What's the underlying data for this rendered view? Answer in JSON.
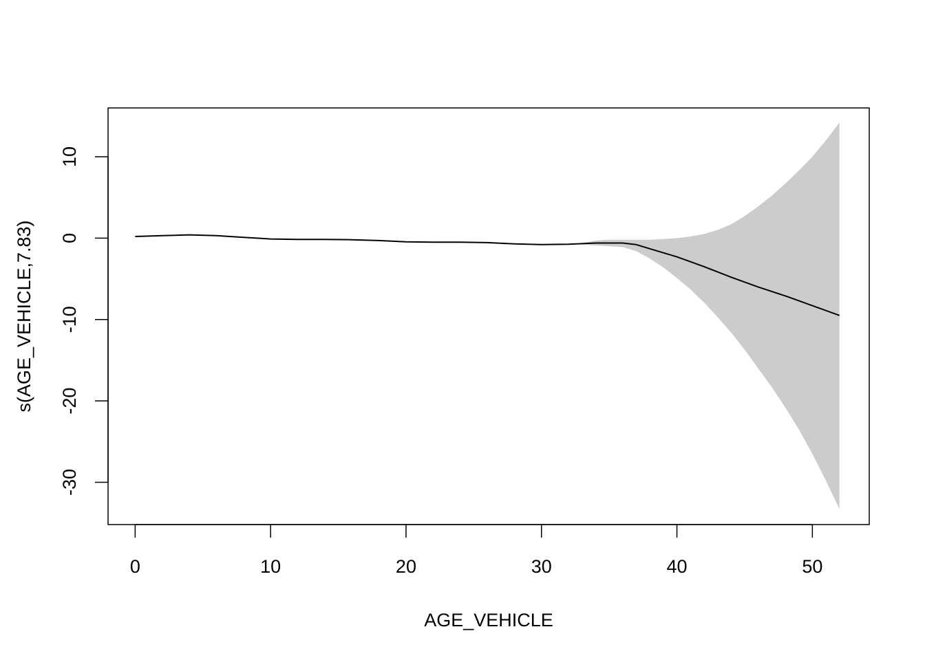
{
  "chart_data": {
    "type": "line",
    "title": "",
    "xlabel": "AGE_VEHICLE",
    "ylabel": "s(AGE_VEHICLE,7.83)",
    "xlim": [
      -2,
      54.2
    ],
    "ylim": [
      -35.2,
      16
    ],
    "x_ticks": [
      0,
      10,
      20,
      30,
      40,
      50
    ],
    "y_ticks": [
      -30,
      -20,
      -10,
      0,
      10
    ],
    "grid": false,
    "legend": "none",
    "series": [
      {
        "role": "estimate",
        "color": "#000000",
        "points": [
          [
            0,
            0.2
          ],
          [
            2,
            0.3
          ],
          [
            4,
            0.4
          ],
          [
            6,
            0.3
          ],
          [
            8,
            0.1
          ],
          [
            10,
            -0.1
          ],
          [
            12,
            -0.15
          ],
          [
            14,
            -0.15
          ],
          [
            16,
            -0.2
          ],
          [
            18,
            -0.3
          ],
          [
            20,
            -0.45
          ],
          [
            22,
            -0.5
          ],
          [
            24,
            -0.5
          ],
          [
            26,
            -0.55
          ],
          [
            28,
            -0.7
          ],
          [
            30,
            -0.8
          ],
          [
            32,
            -0.75
          ],
          [
            34,
            -0.6
          ],
          [
            36,
            -0.6
          ],
          [
            37,
            -0.8
          ],
          [
            38,
            -1.3
          ],
          [
            40,
            -2.3
          ],
          [
            42,
            -3.5
          ],
          [
            44,
            -4.8
          ],
          [
            46,
            -6.0
          ],
          [
            48,
            -7.1
          ],
          [
            50,
            -8.3
          ],
          [
            52,
            -9.5
          ]
        ]
      },
      {
        "role": "confidence-band",
        "color": "#cccccc",
        "x": [
          33,
          34,
          35,
          36,
          37,
          38,
          39,
          40,
          41,
          42,
          43,
          44,
          45,
          46,
          47,
          48,
          49,
          50,
          51,
          52
        ],
        "upper": [
          -0.6,
          -0.3,
          -0.2,
          -0.2,
          -0.2,
          -0.2,
          -0.1,
          0.0,
          0.2,
          0.5,
          1.0,
          1.7,
          2.7,
          3.9,
          5.2,
          6.7,
          8.3,
          10.0,
          12.0,
          14.2
        ],
        "lower": [
          -0.8,
          -0.9,
          -1.0,
          -1.1,
          -1.6,
          -2.5,
          -3.6,
          -4.9,
          -6.3,
          -7.9,
          -9.7,
          -11.6,
          -13.7,
          -16.0,
          -18.3,
          -20.8,
          -23.5,
          -26.5,
          -29.8,
          -33.3
        ]
      }
    ]
  }
}
